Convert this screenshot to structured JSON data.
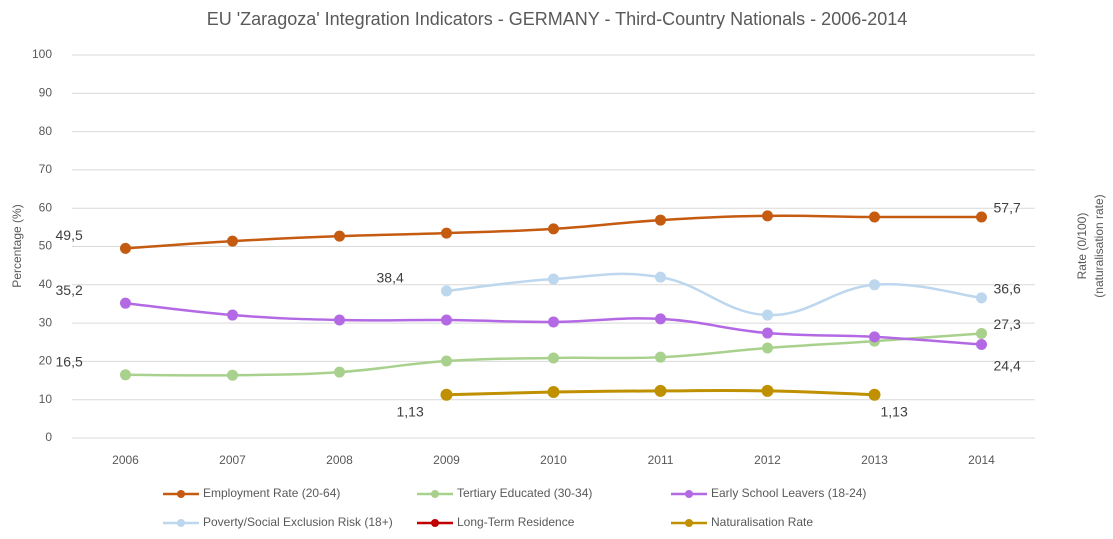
{
  "chart_data": {
    "type": "line",
    "title": "EU 'Zaragoza' Integration Indicators - GERMANY - Third-Country Nationals - 2006-2014",
    "ylabel": "Percentage (%)",
    "y2label": [
      "Rate (0/100)",
      "(naturalisation rate)"
    ],
    "categories": [
      "2006",
      "2007",
      "2008",
      "2009",
      "2010",
      "2011",
      "2012",
      "2013",
      "2014"
    ],
    "ylim": [
      0,
      100
    ],
    "yticks": [
      0,
      10,
      20,
      30,
      40,
      50,
      60,
      70,
      80,
      90,
      100
    ],
    "y2lim": [
      0,
      10
    ],
    "grid": true,
    "legend": "bottom",
    "series": [
      {
        "name": "Employment Rate (20-64)",
        "color": "#c55a11",
        "values": [
          49.5,
          51.4,
          52.7,
          53.5,
          54.6,
          56.9,
          58.0,
          57.7,
          57.7
        ],
        "value_labels": [
          "49,5",
          null,
          null,
          null,
          null,
          null,
          null,
          null,
          "57,7"
        ]
      },
      {
        "name": "Tertiary Educated (30-34)",
        "color": "#a9d18e",
        "values": [
          16.5,
          16.4,
          17.2,
          20.1,
          20.9,
          21.1,
          23.5,
          25.3,
          27.3
        ],
        "value_labels": [
          "16,5",
          null,
          null,
          null,
          null,
          null,
          null,
          null,
          "27,3"
        ]
      },
      {
        "name": "Early School Leavers (18-24)",
        "color": "#b469e4",
        "values": [
          35.2,
          32.1,
          30.8,
          30.8,
          30.3,
          31.1,
          27.4,
          26.4,
          24.4
        ],
        "value_labels": [
          "35,2",
          null,
          null,
          null,
          null,
          null,
          null,
          null,
          "24,4"
        ]
      },
      {
        "name": "Poverty/Social Exclusion Risk (18+)",
        "color": "#bdd7ee",
        "values": [
          null,
          null,
          null,
          38.4,
          41.5,
          42.0,
          32.1,
          40.0,
          36.6
        ],
        "value_labels": [
          null,
          null,
          null,
          "38,4",
          null,
          null,
          null,
          null,
          "36,6"
        ]
      },
      {
        "name": "Long-Term Residence",
        "color": "#c00000",
        "values": [
          null,
          null,
          null,
          null,
          null,
          null,
          null,
          null,
          null
        ]
      },
      {
        "name": "Naturalisation Rate",
        "color": "#bf9000",
        "axis": "y2",
        "values": [
          null,
          null,
          null,
          1.13,
          1.2,
          1.23,
          1.23,
          1.13,
          null
        ],
        "value_labels": [
          null,
          null,
          null,
          "1,13",
          null,
          null,
          null,
          "1,13",
          null
        ]
      }
    ]
  }
}
